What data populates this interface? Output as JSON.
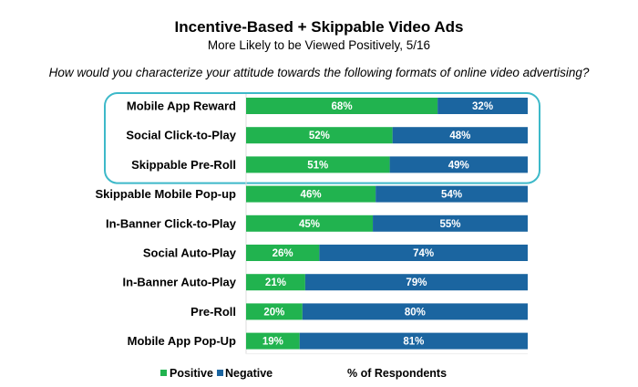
{
  "chart_data": {
    "type": "bar",
    "orientation": "horizontal",
    "stacked": true,
    "title": "Incentive-Based + Skippable Video Ads",
    "subtitle": "More Likely to be Viewed Positively, 5/16",
    "question": "How would you characterize your attitude towards the following formats of online video advertising?",
    "categories": [
      "Mobile App Reward",
      "Social Click-to-Play",
      "Skippable Pre-Roll",
      "Skippable Mobile Pop-up",
      "In-Banner Click-to-Play",
      "Social Auto-Play",
      "In-Banner Auto-Play",
      "Pre-Roll",
      "Mobile App Pop-Up"
    ],
    "series": [
      {
        "name": "Positive",
        "color": "#21b34f",
        "values": [
          68,
          52,
          51,
          46,
          45,
          26,
          21,
          20,
          19
        ]
      },
      {
        "name": "Negative",
        "color": "#1b65a0",
        "values": [
          32,
          48,
          49,
          54,
          55,
          74,
          79,
          80,
          81
        ]
      }
    ],
    "highlighted_categories": [
      "Mobile App Reward",
      "Social Click-to-Play",
      "Skippable Pre-Roll"
    ],
    "highlight_color": "#3db9c9",
    "xlabel": "% of Respondents",
    "xlim": [
      0,
      100
    ],
    "grid": false,
    "legend": "bottom-left"
  }
}
